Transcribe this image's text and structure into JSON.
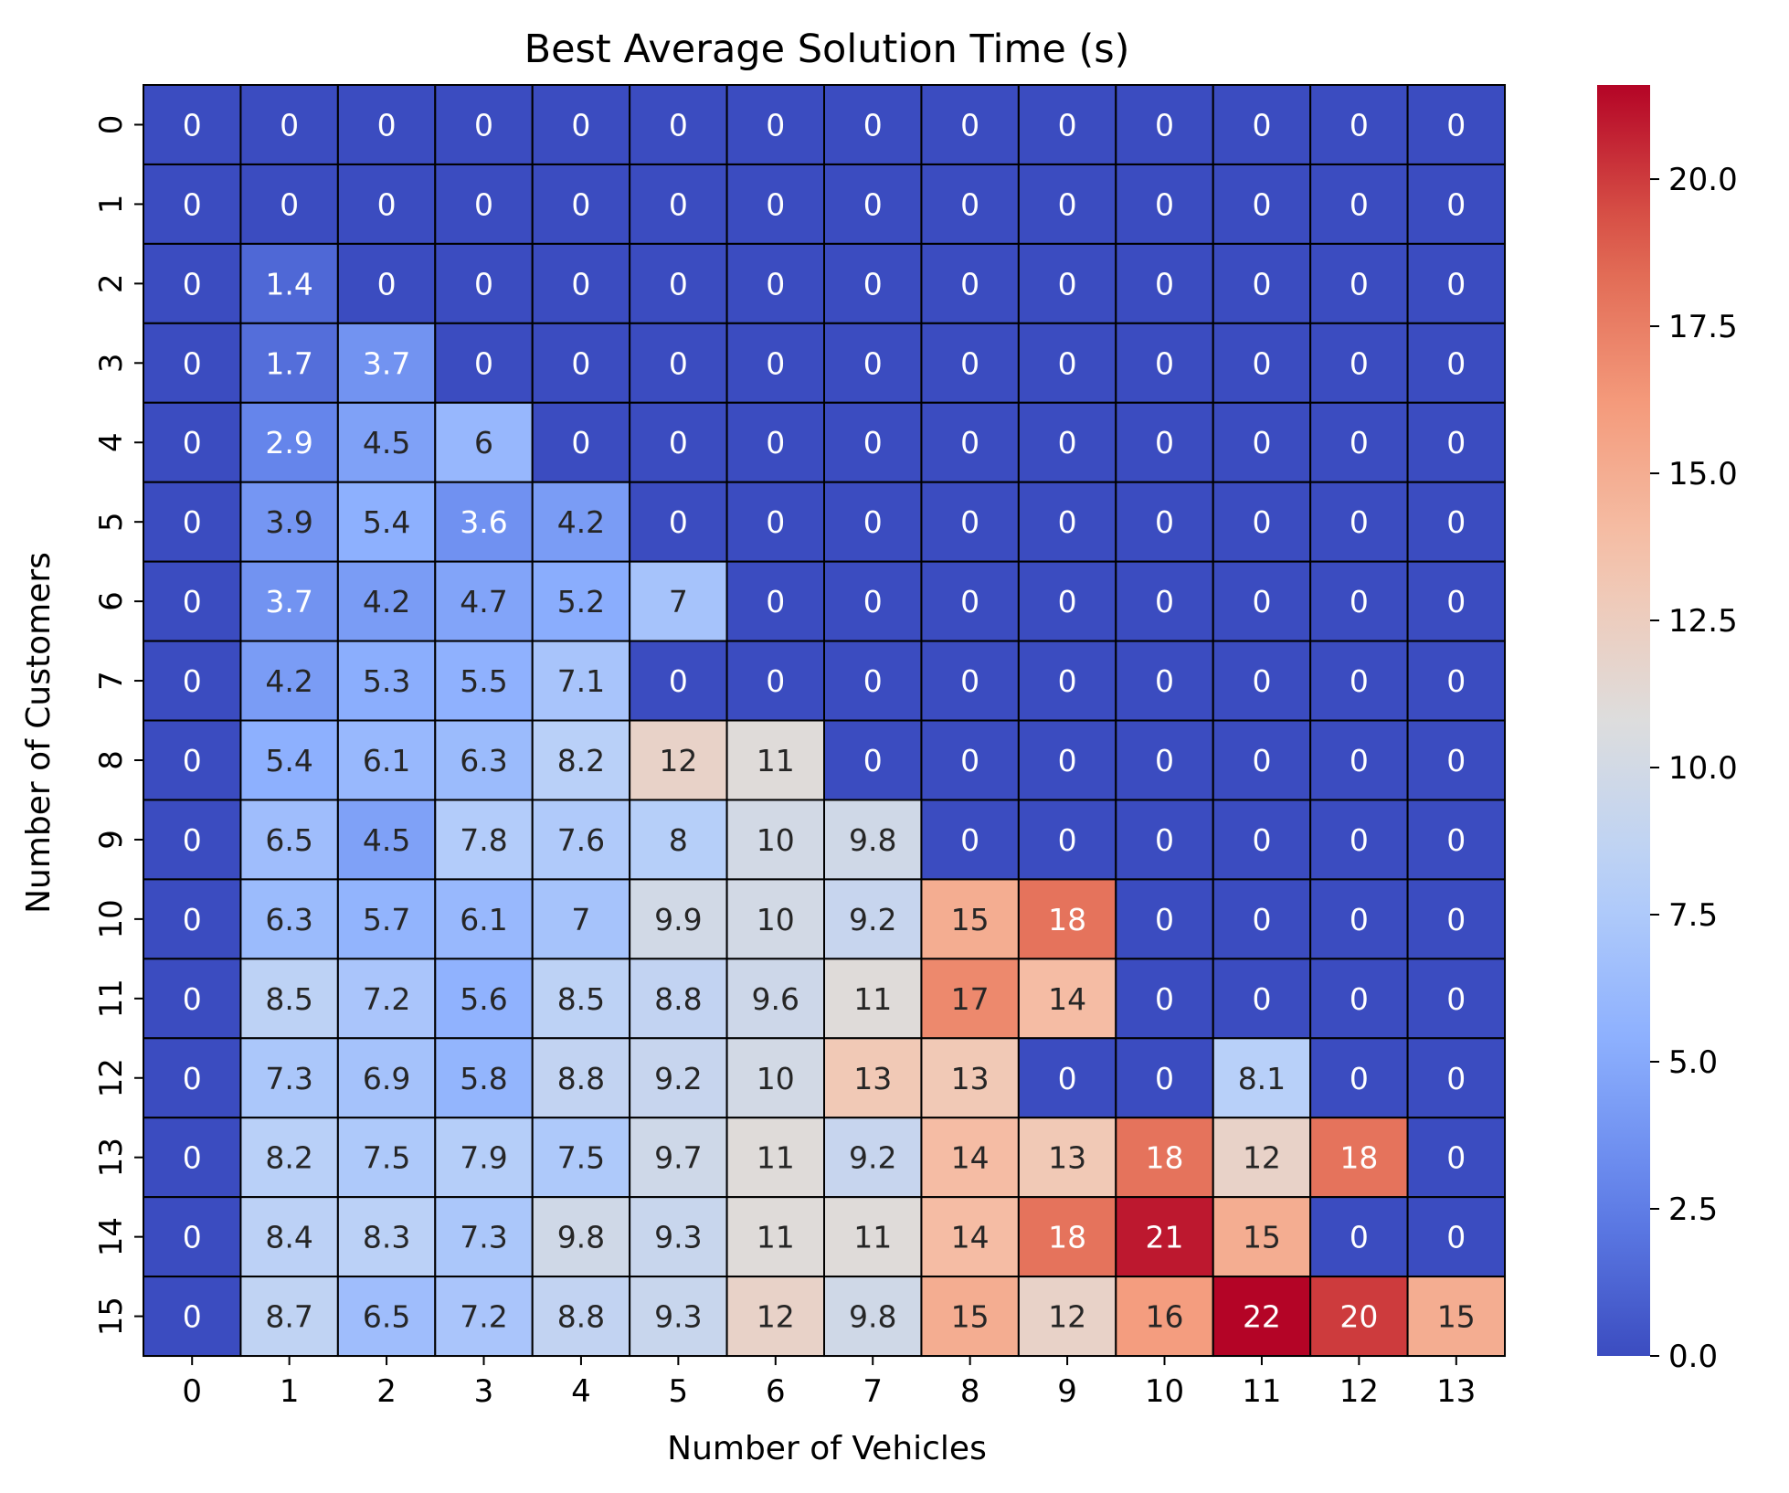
{
  "chart_data": {
    "type": "heatmap",
    "title": "Best Average Solution Time (s)",
    "xlabel": "Number of Vehicles",
    "ylabel": "Number of Customers",
    "x_categories": [
      "0",
      "1",
      "2",
      "3",
      "4",
      "5",
      "6",
      "7",
      "8",
      "9",
      "10",
      "11",
      "12",
      "13"
    ],
    "y_categories": [
      "0",
      "1",
      "2",
      "3",
      "4",
      "5",
      "6",
      "7",
      "8",
      "9",
      "10",
      "11",
      "12",
      "13",
      "14",
      "15"
    ],
    "values": [
      [
        0,
        0,
        0,
        0,
        0,
        0,
        0,
        0,
        0,
        0,
        0,
        0,
        0,
        0
      ],
      [
        0,
        0,
        0,
        0,
        0,
        0,
        0,
        0,
        0,
        0,
        0,
        0,
        0,
        0
      ],
      [
        0,
        1.4,
        0,
        0,
        0,
        0,
        0,
        0,
        0,
        0,
        0,
        0,
        0,
        0
      ],
      [
        0,
        1.7,
        3.7,
        0,
        0,
        0,
        0,
        0,
        0,
        0,
        0,
        0,
        0,
        0
      ],
      [
        0,
        2.9,
        4.5,
        6,
        0,
        0,
        0,
        0,
        0,
        0,
        0,
        0,
        0,
        0
      ],
      [
        0,
        3.9,
        5.4,
        3.6,
        4.2,
        0,
        0,
        0,
        0,
        0,
        0,
        0,
        0,
        0
      ],
      [
        0,
        3.7,
        4.2,
        4.7,
        5.2,
        7,
        0,
        0,
        0,
        0,
        0,
        0,
        0,
        0
      ],
      [
        0,
        4.2,
        5.3,
        5.5,
        7.1,
        0,
        0,
        0,
        0,
        0,
        0,
        0,
        0,
        0
      ],
      [
        0,
        5.4,
        6.1,
        6.3,
        8.2,
        12,
        11,
        0,
        0,
        0,
        0,
        0,
        0,
        0
      ],
      [
        0,
        6.5,
        4.5,
        7.8,
        7.6,
        8,
        10,
        9.8,
        0,
        0,
        0,
        0,
        0,
        0
      ],
      [
        0,
        6.3,
        5.7,
        6.1,
        7,
        9.9,
        10,
        9.2,
        15,
        18,
        0,
        0,
        0,
        0
      ],
      [
        0,
        8.5,
        7.2,
        5.6,
        8.5,
        8.8,
        9.6,
        11,
        17,
        14,
        0,
        0,
        0,
        0
      ],
      [
        0,
        7.3,
        6.9,
        5.8,
        8.8,
        9.2,
        10,
        13,
        13,
        0,
        0,
        8.1,
        0,
        0
      ],
      [
        0,
        8.2,
        7.5,
        7.9,
        7.5,
        9.7,
        11,
        9.2,
        14,
        13,
        18,
        12,
        18,
        0
      ],
      [
        0,
        8.4,
        8.3,
        7.3,
        9.8,
        9.3,
        11,
        11,
        14,
        18,
        21,
        15,
        0,
        0
      ],
      [
        0,
        8.7,
        6.5,
        7.2,
        8.8,
        9.3,
        12,
        9.8,
        15,
        12,
        16,
        22,
        20,
        15
      ]
    ],
    "colormap": "coolwarm",
    "vmin": 0,
    "vmax": 21.6,
    "colorbar_ticks": [
      "0.0",
      "2.5",
      "5.0",
      "7.5",
      "10.0",
      "12.5",
      "15.0",
      "17.5",
      "20.0"
    ],
    "colorbar_tick_values": [
      0,
      2.5,
      5,
      7.5,
      10,
      12.5,
      15,
      17.5,
      20
    ],
    "grid": true
  }
}
